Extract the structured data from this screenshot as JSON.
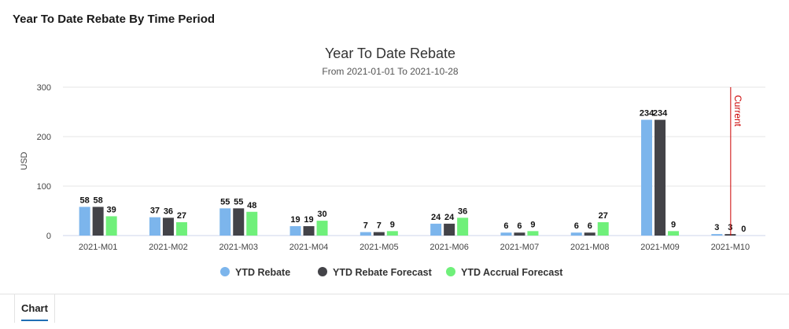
{
  "panel": {
    "title": "Year To Date Rebate By Time Period"
  },
  "tabs": [
    {
      "label": "Chart",
      "active": true
    }
  ],
  "chart_data": {
    "type": "bar",
    "title": "Year To Date Rebate",
    "subtitle": "From 2021-01-01 To 2021-10-28",
    "xlabel": "",
    "ylabel": "USD",
    "ylim": [
      0,
      300
    ],
    "yticks": [
      0,
      100,
      200,
      300
    ],
    "grid": true,
    "legend_position": "bottom-center",
    "categories": [
      "2021-M01",
      "2021-M02",
      "2021-M03",
      "2021-M04",
      "2021-M05",
      "2021-M06",
      "2021-M07",
      "2021-M08",
      "2021-M09",
      "2021-M10"
    ],
    "series": [
      {
        "name": "YTD Rebate",
        "color": "#7cb5ec",
        "values": [
          58,
          37,
          55,
          19,
          7,
          24,
          6,
          6,
          234,
          3
        ]
      },
      {
        "name": "YTD Rebate Forecast",
        "color": "#434348",
        "values": [
          58,
          36,
          55,
          19,
          7,
          24,
          6,
          6,
          234,
          3
        ]
      },
      {
        "name": "YTD Accrual Forecast",
        "color": "#6ff07a",
        "values": [
          39,
          27,
          48,
          30,
          9,
          36,
          9,
          27,
          9,
          0
        ]
      }
    ],
    "plot_line": {
      "label": "Current",
      "category": "2021-M10",
      "color": "#cc0000"
    }
  }
}
